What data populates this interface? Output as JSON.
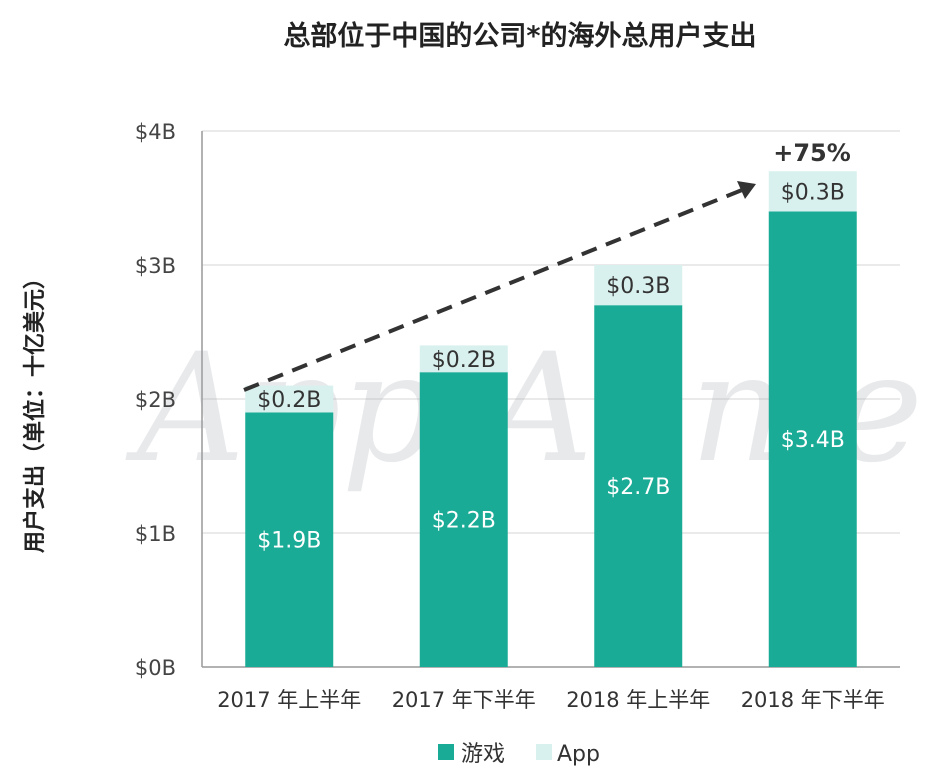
{
  "chart_data": {
    "type": "bar",
    "stacked": true,
    "title": "总部位于中国的公司*的海外总用户支出",
    "ylabel": "用户支出（单位：十亿美元）",
    "xlabel": "",
    "ylim": [
      0,
      4
    ],
    "yticks": [
      "$0B",
      "$1B",
      "$2B",
      "$3B",
      "$4B"
    ],
    "categories": [
      "2017 年上半年",
      "2017 年下半年",
      "2018 年上半年",
      "2018 年下半年"
    ],
    "series": [
      {
        "name": "游戏",
        "values": [
          1.9,
          2.2,
          2.7,
          3.4
        ],
        "labels": [
          "$1.9B",
          "$2.2B",
          "$2.7B",
          "$3.4B"
        ],
        "color": "#1aab96"
      },
      {
        "name": "App",
        "values": [
          0.2,
          0.2,
          0.3,
          0.3
        ],
        "labels": [
          "$0.2B",
          "$0.2B",
          "$0.3B",
          "$0.3B"
        ],
        "color": "#d9f1ee"
      }
    ],
    "annotation": "+75%",
    "grid": true,
    "legend": "bottom",
    "watermark": "App Annie"
  }
}
